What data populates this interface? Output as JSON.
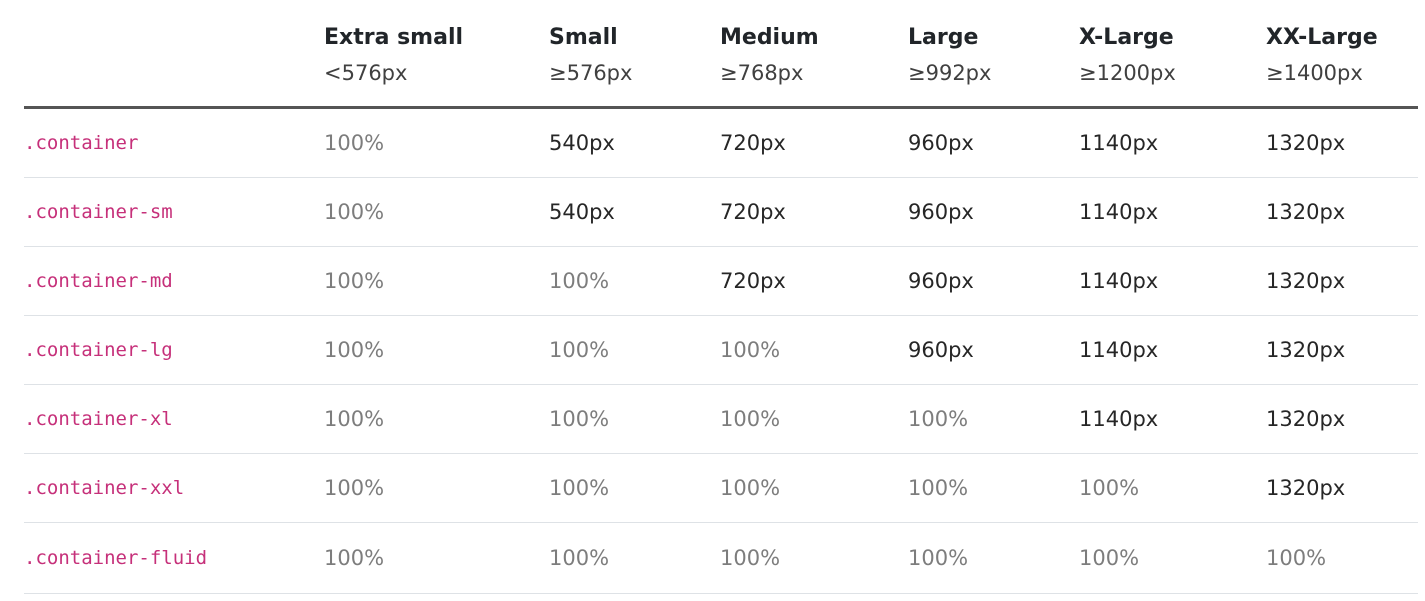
{
  "columns": [
    {
      "title": "",
      "sub": ""
    },
    {
      "title": "Extra small",
      "sub": "<576px"
    },
    {
      "title": "Small",
      "sub": "≥576px"
    },
    {
      "title": "Medium",
      "sub": "≥768px"
    },
    {
      "title": "Large",
      "sub": "≥992px"
    },
    {
      "title": "X-Large",
      "sub": "≥1200px"
    },
    {
      "title": "XX-Large",
      "sub": "≥1400px"
    }
  ],
  "rows": [
    {
      "cls": ".container",
      "cells": [
        "100%",
        "540px",
        "720px",
        "960px",
        "1140px",
        "1320px"
      ]
    },
    {
      "cls": ".container-sm",
      "cells": [
        "100%",
        "540px",
        "720px",
        "960px",
        "1140px",
        "1320px"
      ]
    },
    {
      "cls": ".container-md",
      "cells": [
        "100%",
        "100%",
        "720px",
        "960px",
        "1140px",
        "1320px"
      ]
    },
    {
      "cls": ".container-lg",
      "cells": [
        "100%",
        "100%",
        "100%",
        "960px",
        "1140px",
        "1320px"
      ]
    },
    {
      "cls": ".container-xl",
      "cells": [
        "100%",
        "100%",
        "100%",
        "100%",
        "1140px",
        "1320px"
      ]
    },
    {
      "cls": ".container-xxl",
      "cells": [
        "100%",
        "100%",
        "100%",
        "100%",
        "100%",
        "1320px"
      ]
    },
    {
      "cls": ".container-fluid",
      "cells": [
        "100%",
        "100%",
        "100%",
        "100%",
        "100%",
        "100%"
      ]
    }
  ],
  "colors": {
    "class_name": "#c6307a",
    "fixed_width": "#262626",
    "full_width": "#7d7d7d",
    "header_rule": "#555555",
    "row_rule": "#dee2e6"
  }
}
